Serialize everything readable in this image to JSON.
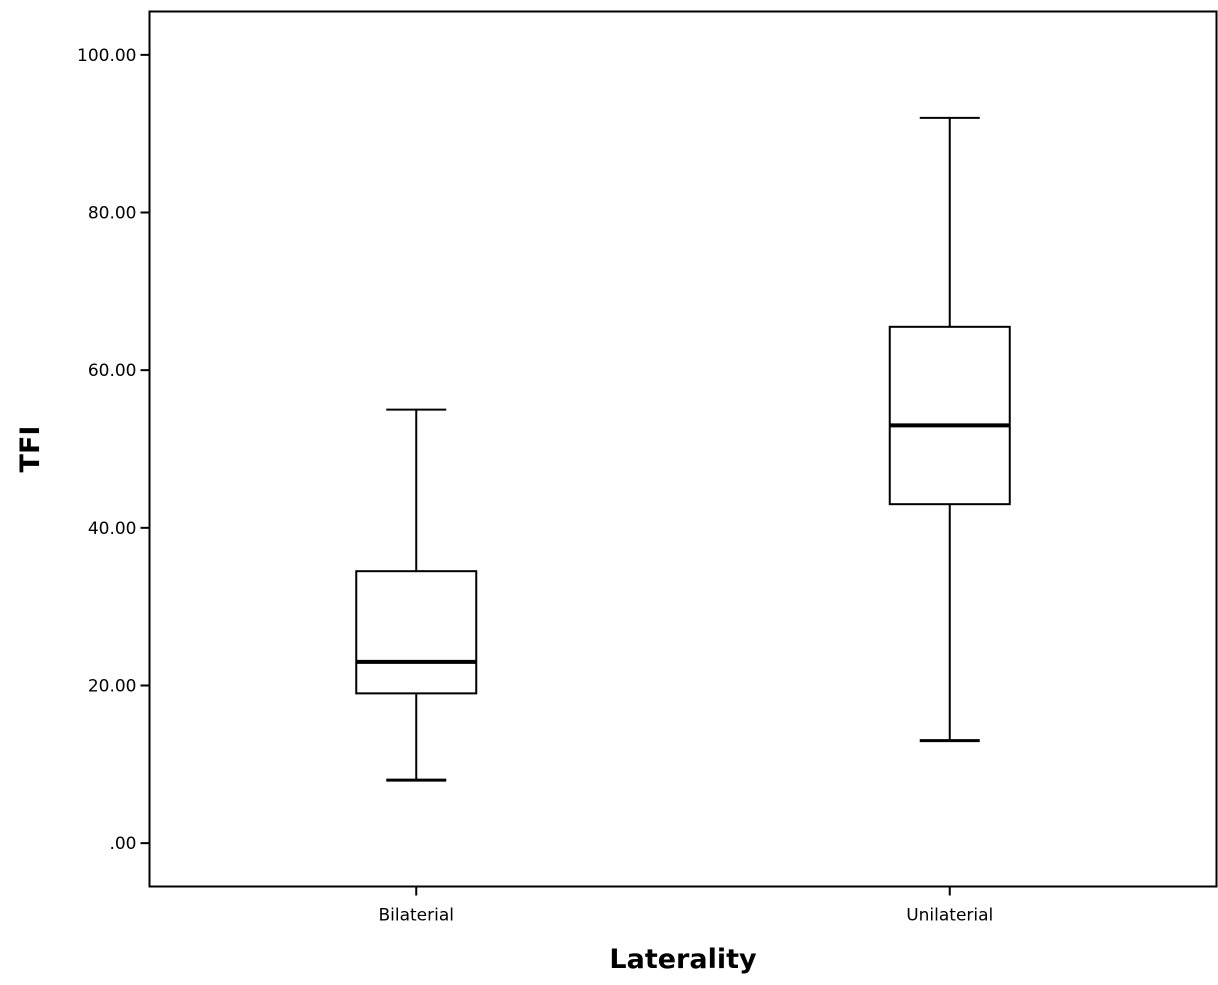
{
  "chart_data": {
    "type": "box",
    "title": "",
    "xlabel": "Laterality",
    "ylabel": "TFI",
    "ylim": [
      -5.5,
      105.5
    ],
    "yticks": [
      0,
      20,
      40,
      60,
      80,
      100
    ],
    "ytick_labels": [
      ".00",
      "20.00",
      "40.00",
      "60.00",
      "80.00",
      "100.00"
    ],
    "grid": false,
    "categories": [
      "Bilaterial",
      "Unilaterial"
    ],
    "boxes": [
      {
        "category": "Bilaterial",
        "min": 8,
        "q1": 19,
        "median": 23,
        "q3": 34.5,
        "max": 55
      },
      {
        "category": "Unilaterial",
        "min": 13,
        "q1": 43,
        "median": 53,
        "q3": 65.5,
        "max": 92
      }
    ]
  }
}
